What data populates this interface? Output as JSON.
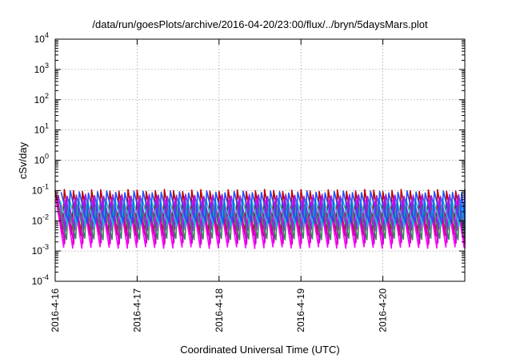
{
  "chart_data": {
    "type": "line",
    "title": "/data/run/goesPlots/archive/2016-04-20/23:00/flux/../bryn/5daysMars.plot",
    "xlabel": "Coordinated Universal Time (UTC)",
    "ylabel": "cSv/day",
    "yscale": "log",
    "ylim": [
      0.0001,
      10000
    ],
    "xlim_days": [
      0,
      5
    ],
    "x_ticks": [
      {
        "day": 0,
        "label": "2016-4-16"
      },
      {
        "day": 1,
        "label": "2016-4-17"
      },
      {
        "day": 2,
        "label": "2016-4-18"
      },
      {
        "day": 3,
        "label": "2016-4-19"
      },
      {
        "day": 4,
        "label": "2016-4-20"
      }
    ],
    "y_ticks": [
      {
        "value": 0.0001,
        "base": "10",
        "exp": "-4"
      },
      {
        "value": 0.001,
        "base": "10",
        "exp": "-3"
      },
      {
        "value": 0.01,
        "base": "10",
        "exp": "-2"
      },
      {
        "value": 0.1,
        "base": "10",
        "exp": "-1"
      },
      {
        "value": 1,
        "base": "10",
        "exp": "0"
      },
      {
        "value": 10,
        "base": "10",
        "exp": "1"
      },
      {
        "value": 100,
        "base": "10",
        "exp": "2"
      },
      {
        "value": 1000,
        "base": "10",
        "exp": "3"
      },
      {
        "value": 10000,
        "base": "10",
        "exp": "4"
      }
    ],
    "grid": true,
    "legend": "none",
    "cycles_per_day": 9,
    "series": [
      {
        "color": "#c00000",
        "peak": 0.1,
        "trough": 0.0035
      },
      {
        "color": "#ff00ff",
        "peak": 0.045,
        "trough": 0.0013
      },
      {
        "color": "#cc00cc",
        "peak": 0.06,
        "trough": 0.0018
      },
      {
        "color": "#8a2be2",
        "peak": 0.07,
        "trough": 0.005
      },
      {
        "color": "#2e8b57",
        "peak": 0.03,
        "trough": 0.0025
      },
      {
        "color": "#00c8c8",
        "peak": 0.05,
        "trough": 0.007
      },
      {
        "color": "#1e50ff",
        "peak": 0.09,
        "trough": 0.009
      }
    ]
  }
}
